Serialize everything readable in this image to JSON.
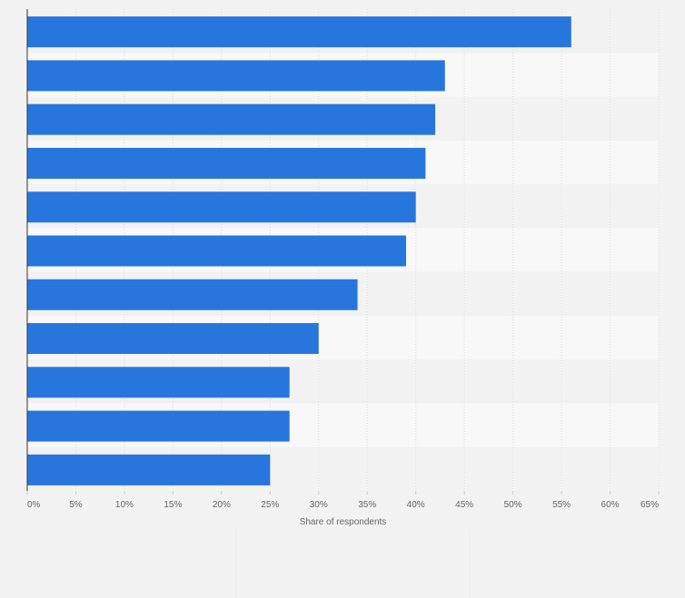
{
  "chart_data": {
    "type": "bar",
    "orientation": "horizontal",
    "categories": [
      "",
      "",
      "",
      "",
      "",
      "",
      "",
      "",
      "",
      "",
      ""
    ],
    "values": [
      56,
      43,
      42,
      41,
      40,
      39,
      34,
      30,
      27,
      27,
      25
    ],
    "xlabel": "Share of respondents",
    "xlim": [
      0,
      65
    ],
    "ticks": [
      0,
      5,
      10,
      15,
      20,
      25,
      30,
      35,
      40,
      45,
      50,
      55,
      60,
      65
    ],
    "tick_labels": [
      "0%",
      "5%",
      "10%",
      "15%",
      "20%",
      "25%",
      "30%",
      "35%",
      "40%",
      "45%",
      "50%",
      "55%",
      "60%",
      "65%"
    ],
    "grid": true,
    "colors": {
      "bar": "#2776dd",
      "band_dark": "#f2f2f2",
      "band_light": "#f8f8f8",
      "grid": "#dcdcdc",
      "axis": "#333333"
    }
  }
}
